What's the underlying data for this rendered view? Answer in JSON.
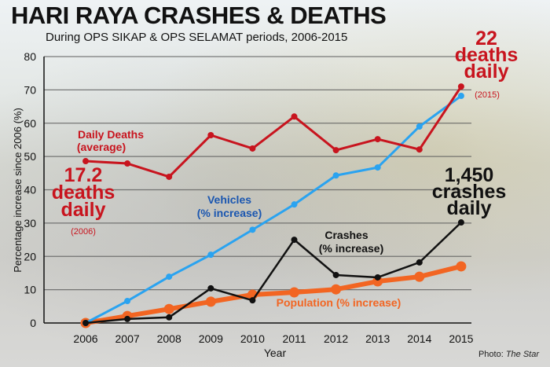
{
  "chart_data": {
    "type": "line",
    "title": "HARI RAYA CRASHES & DEATHS",
    "subtitle": "During OPS SIKAP & OPS SELAMAT periods, 2006-2015",
    "xlabel": "Year",
    "ylabel": "Percentage increase since 2006 (%)",
    "ylim": [
      0,
      80
    ],
    "yticks": [
      "0",
      "10",
      "20",
      "30",
      "40",
      "50",
      "60",
      "70",
      "80"
    ],
    "x": [
      "2006",
      "2007",
      "2008",
      "2009",
      "2010",
      "2011",
      "2012",
      "2013",
      "2014",
      "2015"
    ],
    "grid": true,
    "series": [
      {
        "name": "Daily Deaths (average)",
        "label1": "Daily Deaths",
        "label2": "(average)",
        "color": "#c8141e",
        "values": [
          48.6,
          47.9,
          43.9,
          56.4,
          52.4,
          62,
          51.9,
          55.2,
          52.1,
          71
        ]
      },
      {
        "name": "Vehicles (% increase)",
        "label1": "Vehicles",
        "label2": "(% increase)",
        "color": "#2aa3f0",
        "values": [
          0,
          6.6,
          13.9,
          20.5,
          28,
          35.6,
          44.3,
          46.7,
          59,
          68.2
        ]
      },
      {
        "name": "Crashes (% increase)",
        "label1": "Crashes",
        "label2": "(% increase)",
        "color": "#111111",
        "values": [
          0,
          1.2,
          1.7,
          10.4,
          6.8,
          25,
          14.4,
          13.7,
          18.2,
          30.2
        ]
      },
      {
        "name": "Population (% increase)",
        "label1": "Population (% increase)",
        "label2": "",
        "color": "#f26522",
        "values": [
          0,
          2.1,
          4.2,
          6.4,
          8.5,
          9.2,
          10.1,
          12.5,
          13.9,
          17
        ]
      }
    ],
    "annotations": {
      "deaths_2006": [
        "17.2",
        "deaths",
        "daily"
      ],
      "deaths_2006_year": "(2006)",
      "deaths_2015": [
        "22",
        "deaths",
        "daily"
      ],
      "deaths_2015_year": "(2015)",
      "crashes_2015": [
        "1,450",
        "crashes",
        "daily"
      ]
    }
  },
  "credit": {
    "prefix": "Photo: ",
    "source": "The Star"
  }
}
